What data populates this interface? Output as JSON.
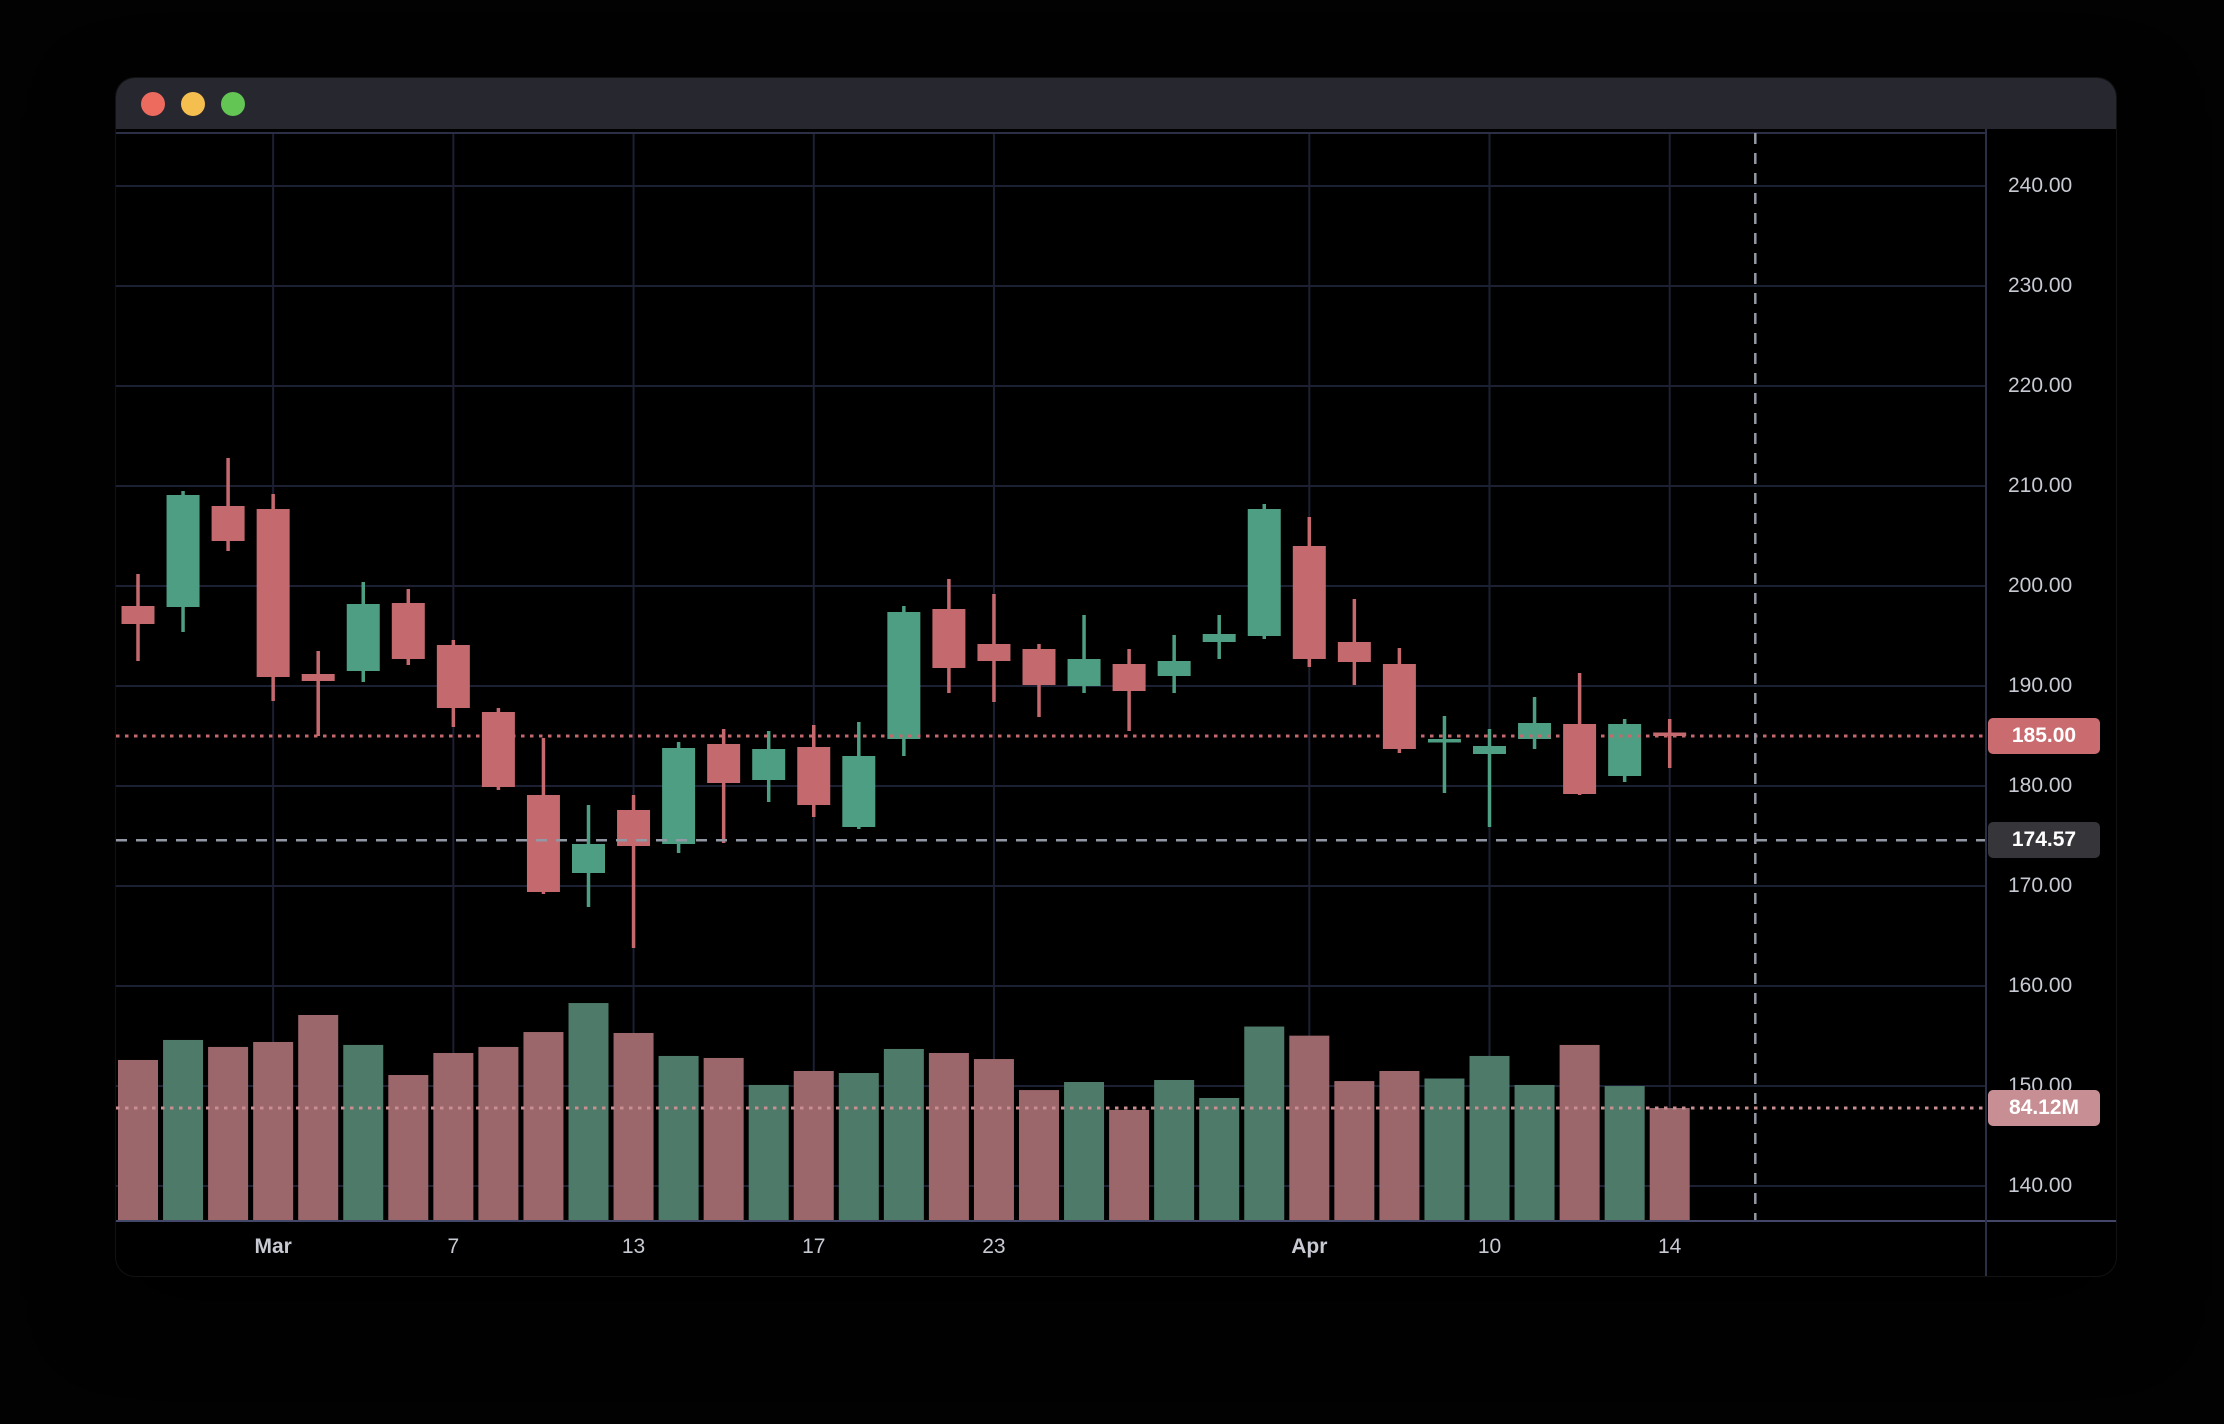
{
  "window": {
    "traffic_lights": [
      {
        "name": "close",
        "color": "#ed6a5f"
      },
      {
        "name": "minimize",
        "color": "#f5bf4f"
      },
      {
        "name": "zoom",
        "color": "#62c554"
      }
    ],
    "titlebar_color": "#27272f"
  },
  "colors": {
    "background": "#000000",
    "grid": "#1c2033",
    "plot_border": "#434868",
    "axis_border": "#2a2f45",
    "candle_up": "#4d9e82",
    "candle_down": "#c4696e",
    "volume_up": "#4d7a69",
    "volume_down": "#9c676b",
    "axis_text": "#c7cad2",
    "last_price_line": "#c4696e",
    "volume_line": "#c98e92",
    "crosshair": "#9298a4",
    "last_price_badge_bg": "#c96b6f",
    "crosshair_badge_bg": "#35353a",
    "volume_badge_bg": "#c78f93"
  },
  "chart_data": {
    "type": "candlestick_with_volume",
    "title": "",
    "ylabel": "",
    "y_axis": {
      "tick_prices": [
        240,
        230,
        220,
        210,
        200,
        190,
        180,
        170,
        160,
        150,
        140
      ],
      "tick_labels": [
        "240.00",
        "230.00",
        "220.00",
        "210.00",
        "200.00",
        "190.00",
        "180.00",
        "170.00",
        "160.00",
        "150.00",
        "140.00"
      ],
      "visible_range": [
        136.5,
        245.7
      ],
      "grid": true
    },
    "x_axis": {
      "ticks": [
        {
          "index": 3,
          "label": "Mar",
          "bold": true
        },
        {
          "index": 7,
          "label": "7",
          "bold": false
        },
        {
          "index": 11,
          "label": "13",
          "bold": false
        },
        {
          "index": 15,
          "label": "17",
          "bold": false
        },
        {
          "index": 19,
          "label": "23",
          "bold": false
        },
        {
          "index": 26,
          "label": "Apr",
          "bold": true
        },
        {
          "index": 30,
          "label": "10",
          "bold": false
        },
        {
          "index": 34,
          "label": "14",
          "bold": false
        }
      ],
      "grid": true
    },
    "candles_ohlcv": [
      [
        198.0,
        201.2,
        192.5,
        196.2,
        119.9
      ],
      [
        197.9,
        209.5,
        195.4,
        209.1,
        134.8
      ],
      [
        208.0,
        212.8,
        203.5,
        204.5,
        129.6
      ],
      [
        207.7,
        209.2,
        188.5,
        190.9,
        133.3
      ],
      [
        191.2,
        193.5,
        185.0,
        190.5,
        153.4
      ],
      [
        191.5,
        200.4,
        190.4,
        198.2,
        131.1
      ],
      [
        198.3,
        199.7,
        192.1,
        192.7,
        108.7
      ],
      [
        194.1,
        194.6,
        185.9,
        187.8,
        125.1
      ],
      [
        187.4,
        187.8,
        179.6,
        179.9,
        129.6
      ],
      [
        179.1,
        184.8,
        169.2,
        169.4,
        140.7
      ],
      [
        171.3,
        178.1,
        167.9,
        174.2,
        162.3
      ],
      [
        177.6,
        179.1,
        163.8,
        174.0,
        140.0
      ],
      [
        174.2,
        184.4,
        173.3,
        183.8,
        122.9
      ],
      [
        184.2,
        185.7,
        174.3,
        180.3,
        121.4
      ],
      [
        180.6,
        185.5,
        178.4,
        183.7,
        101.3
      ],
      [
        183.9,
        186.1,
        176.9,
        178.1,
        111.7
      ],
      [
        175.9,
        186.4,
        175.7,
        183.0,
        110.2
      ],
      [
        184.7,
        198.0,
        183.0,
        197.4,
        128.1
      ],
      [
        197.7,
        200.7,
        189.3,
        191.8,
        125.1
      ],
      [
        194.2,
        199.2,
        188.4,
        192.5,
        120.6
      ],
      [
        193.7,
        194.2,
        186.9,
        190.1,
        97.5
      ],
      [
        190.0,
        197.1,
        189.3,
        192.7,
        103.5
      ],
      [
        192.2,
        193.7,
        185.5,
        189.5,
        82.7
      ],
      [
        191.0,
        195.1,
        189.3,
        192.5,
        105.0
      ],
      [
        194.4,
        197.1,
        192.7,
        195.2,
        91.6
      ],
      [
        195.0,
        208.2,
        194.7,
        207.7,
        144.8
      ],
      [
        204.0,
        206.9,
        191.9,
        192.7,
        138.0
      ],
      [
        194.4,
        198.7,
        190.1,
        192.4,
        104.2
      ],
      [
        192.2,
        193.8,
        183.3,
        183.7,
        111.7
      ],
      [
        184.4,
        187.0,
        179.3,
        184.7,
        106.1
      ],
      [
        183.2,
        185.7,
        175.9,
        184.0,
        122.9
      ],
      [
        184.7,
        188.9,
        183.7,
        186.3,
        101.3
      ],
      [
        186.2,
        191.3,
        179.1,
        179.2,
        131.1
      ],
      [
        181.0,
        186.7,
        180.4,
        186.2,
        100.5
      ],
      [
        185.35,
        186.7,
        181.8,
        185.0,
        84.12
      ]
    ],
    "volume_unit": "M",
    "last_price": {
      "label": "185.00",
      "value": 185.0
    },
    "crosshair": {
      "price_label": "174.57",
      "price": 174.57,
      "x_slot": 35.9
    },
    "volume_marker": {
      "label": "84.12M",
      "value": 84.12
    },
    "legend_position": "none"
  }
}
